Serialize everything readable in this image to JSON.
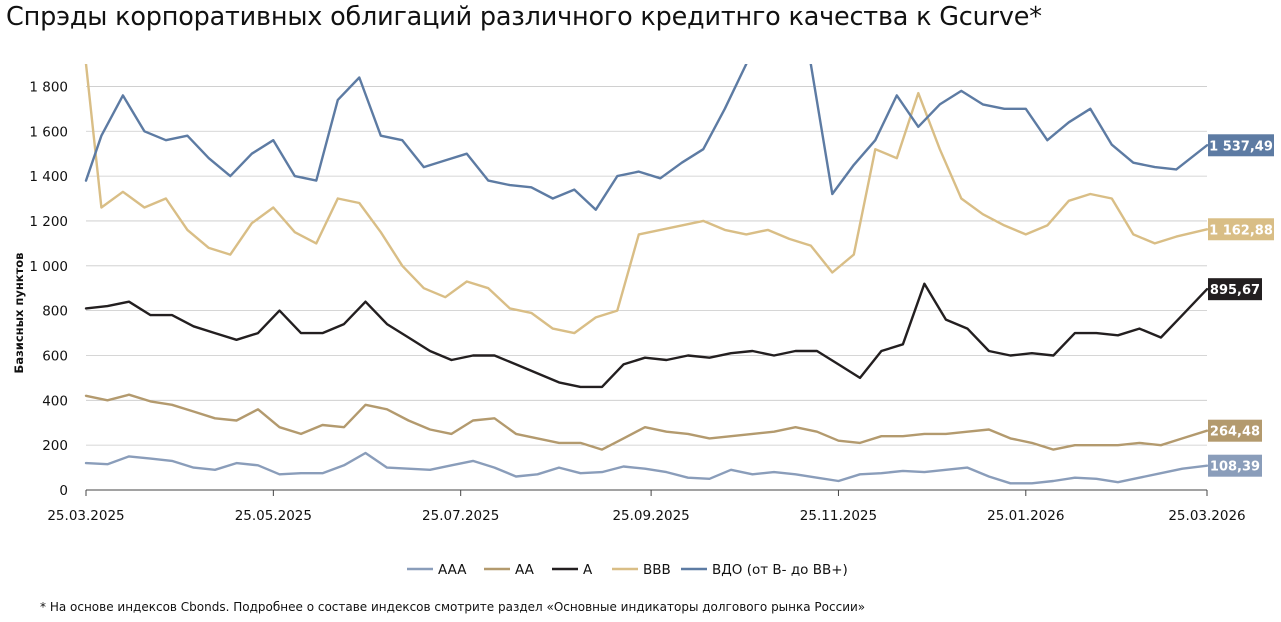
{
  "title": "Спрэды корпоративных облигаций различного кредитнго качества к Gcurve*",
  "footnote": "* На основе индексов Cbonds. Подробнее о составе индексов смотрите раздел «Основные индикаторы долгового рынка России»",
  "chart_data": {
    "type": "line",
    "ylabel": "Базисных пунктов",
    "ylim": [
      0,
      1900
    ],
    "yticks": [
      0,
      200,
      400,
      600,
      800,
      1000,
      1200,
      1400,
      1600,
      1800
    ],
    "ytick_labels": [
      "0",
      "200",
      "400",
      "600",
      "800",
      "1 000",
      "1 200",
      "1 400",
      "1 600",
      "1 800"
    ],
    "xlim": [
      "2025-03-25",
      "2026-03-25"
    ],
    "xticks": [
      "2025-03-25",
      "2025-05-25",
      "2025-07-25",
      "2025-09-25",
      "2025-11-25",
      "2026-01-25",
      "2026-03-25"
    ],
    "xtick_labels": [
      "25.03.2025",
      "25.05.2025",
      "25.07.2025",
      "25.09.2025",
      "25.11.2025",
      "25.01.2026",
      "25.03.2026"
    ],
    "grid": "horizontal",
    "legend_position": "bottom",
    "series": [
      {
        "name": "AAA",
        "color": "#8A9DBA",
        "last_label": "108,39",
        "x": [
          "2025-03-25",
          "2025-04-01",
          "2025-04-08",
          "2025-04-15",
          "2025-04-22",
          "2025-04-29",
          "2025-05-06",
          "2025-05-13",
          "2025-05-20",
          "2025-05-27",
          "2025-06-03",
          "2025-06-10",
          "2025-06-17",
          "2025-06-24",
          "2025-07-01",
          "2025-07-08",
          "2025-07-15",
          "2025-07-22",
          "2025-07-29",
          "2025-08-05",
          "2025-08-12",
          "2025-08-19",
          "2025-08-26",
          "2025-09-02",
          "2025-09-09",
          "2025-09-16",
          "2025-09-23",
          "2025-09-30",
          "2025-10-07",
          "2025-10-14",
          "2025-10-21",
          "2025-10-28",
          "2025-11-04",
          "2025-11-11",
          "2025-11-18",
          "2025-11-25",
          "2025-12-02",
          "2025-12-09",
          "2025-12-16",
          "2025-12-23",
          "2025-12-30",
          "2026-01-06",
          "2026-01-13",
          "2026-01-20",
          "2026-01-27",
          "2026-02-03",
          "2026-02-10",
          "2026-02-17",
          "2026-02-24",
          "2026-03-03",
          "2026-03-10",
          "2026-03-17",
          "2026-03-25"
        ],
        "values": [
          120,
          115,
          150,
          140,
          130,
          100,
          90,
          120,
          110,
          70,
          75,
          75,
          110,
          165,
          100,
          95,
          90,
          110,
          130,
          100,
          60,
          70,
          100,
          75,
          80,
          105,
          95,
          80,
          55,
          50,
          90,
          70,
          80,
          70,
          55,
          40,
          70,
          75,
          85,
          80,
          90,
          100,
          60,
          30,
          30,
          40,
          55,
          50,
          35,
          55,
          75,
          95,
          108.39
        ]
      },
      {
        "name": "AA",
        "color": "#B39A6E",
        "last_label": "264,48",
        "x": [
          "2025-03-25",
          "2025-04-01",
          "2025-04-08",
          "2025-04-15",
          "2025-04-22",
          "2025-04-29",
          "2025-05-06",
          "2025-05-13",
          "2025-05-20",
          "2025-05-27",
          "2025-06-03",
          "2025-06-10",
          "2025-06-17",
          "2025-06-24",
          "2025-07-01",
          "2025-07-08",
          "2025-07-15",
          "2025-07-22",
          "2025-07-29",
          "2025-08-05",
          "2025-08-12",
          "2025-08-19",
          "2025-08-26",
          "2025-09-02",
          "2025-09-09",
          "2025-09-16",
          "2025-09-23",
          "2025-09-30",
          "2025-10-07",
          "2025-10-14",
          "2025-10-21",
          "2025-10-28",
          "2025-11-04",
          "2025-11-11",
          "2025-11-18",
          "2025-11-25",
          "2025-12-02",
          "2025-12-09",
          "2025-12-16",
          "2025-12-23",
          "2025-12-30",
          "2026-01-06",
          "2026-01-13",
          "2026-01-20",
          "2026-01-27",
          "2026-02-03",
          "2026-02-10",
          "2026-02-17",
          "2026-02-24",
          "2026-03-03",
          "2026-03-10",
          "2026-03-17",
          "2026-03-25"
        ],
        "values": [
          420,
          400,
          425,
          395,
          380,
          350,
          320,
          310,
          360,
          280,
          250,
          290,
          280,
          380,
          360,
          310,
          270,
          250,
          310,
          320,
          250,
          230,
          210,
          210,
          180,
          230,
          280,
          260,
          250,
          230,
          240,
          250,
          260,
          280,
          260,
          220,
          210,
          240,
          240,
          250,
          250,
          260,
          270,
          230,
          210,
          180,
          200,
          200,
          200,
          210,
          200,
          230,
          264.48
        ]
      },
      {
        "name": "A",
        "color": "#231F20",
        "last_label": "895,67",
        "x": [
          "2025-03-25",
          "2025-04-01",
          "2025-04-08",
          "2025-04-15",
          "2025-04-22",
          "2025-04-29",
          "2025-05-06",
          "2025-05-13",
          "2025-05-20",
          "2025-05-27",
          "2025-06-03",
          "2025-06-10",
          "2025-06-17",
          "2025-06-24",
          "2025-07-01",
          "2025-07-08",
          "2025-07-15",
          "2025-07-22",
          "2025-07-29",
          "2025-08-05",
          "2025-08-12",
          "2025-08-19",
          "2025-08-26",
          "2025-09-02",
          "2025-09-09",
          "2025-09-16",
          "2025-09-23",
          "2025-09-30",
          "2025-10-07",
          "2025-10-14",
          "2025-10-21",
          "2025-10-28",
          "2025-11-04",
          "2025-11-11",
          "2025-11-18",
          "2025-11-25",
          "2025-12-02",
          "2025-12-09",
          "2025-12-16",
          "2025-12-23",
          "2025-12-30",
          "2026-01-06",
          "2026-01-13",
          "2026-01-20",
          "2026-01-27",
          "2026-02-03",
          "2026-02-10",
          "2026-02-17",
          "2026-02-24",
          "2026-03-03",
          "2026-03-10",
          "2026-03-17",
          "2026-03-25"
        ],
        "values": [
          810,
          820,
          840,
          780,
          780,
          730,
          700,
          670,
          700,
          800,
          700,
          700,
          740,
          840,
          740,
          680,
          620,
          580,
          600,
          600,
          560,
          520,
          480,
          460,
          460,
          560,
          590,
          580,
          600,
          590,
          610,
          620,
          600,
          620,
          620,
          560,
          500,
          620,
          650,
          920,
          760,
          720,
          620,
          600,
          610,
          600,
          700,
          700,
          690,
          720,
          680,
          780,
          895.67
        ]
      },
      {
        "name": "BBB",
        "color": "#D9BE86",
        "last_label": "1 162,88",
        "x": [
          "2025-03-25",
          "2025-03-30",
          "2025-04-06",
          "2025-04-13",
          "2025-04-20",
          "2025-04-27",
          "2025-05-04",
          "2025-05-11",
          "2025-05-18",
          "2025-05-25",
          "2025-06-01",
          "2025-06-08",
          "2025-06-15",
          "2025-06-22",
          "2025-06-29",
          "2025-07-06",
          "2025-07-13",
          "2025-07-20",
          "2025-07-27",
          "2025-08-03",
          "2025-08-10",
          "2025-08-17",
          "2025-08-24",
          "2025-08-31",
          "2025-09-07",
          "2025-09-14",
          "2025-09-21",
          "2025-09-28",
          "2025-10-05",
          "2025-10-12",
          "2025-10-19",
          "2025-10-26",
          "2025-11-02",
          "2025-11-09",
          "2025-11-16",
          "2025-11-23",
          "2025-11-30",
          "2025-12-07",
          "2025-12-14",
          "2025-12-21",
          "2025-12-28",
          "2026-01-04",
          "2026-01-11",
          "2026-01-18",
          "2026-01-25",
          "2026-02-01",
          "2026-02-08",
          "2026-02-15",
          "2026-02-22",
          "2026-03-01",
          "2026-03-08",
          "2026-03-15",
          "2026-03-25"
        ],
        "values": [
          1900,
          1260,
          1330,
          1260,
          1300,
          1160,
          1080,
          1050,
          1190,
          1260,
          1150,
          1100,
          1300,
          1280,
          1150,
          1000,
          900,
          860,
          930,
          900,
          810,
          790,
          720,
          700,
          770,
          800,
          1140,
          1160,
          1180,
          1200,
          1160,
          1140,
          1160,
          1120,
          1090,
          970,
          1050,
          1520,
          1480,
          1770,
          1520,
          1300,
          1230,
          1180,
          1140,
          1180,
          1290,
          1320,
          1300,
          1140,
          1100,
          1130,
          1162.88
        ]
      },
      {
        "name": "ВДО (от B- до BB+)",
        "color": "#5D7BA3",
        "last_label": "1 537,49",
        "x": [
          "2025-03-25",
          "2025-03-30",
          "2025-04-06",
          "2025-04-13",
          "2025-04-20",
          "2025-04-27",
          "2025-05-04",
          "2025-05-11",
          "2025-05-18",
          "2025-05-25",
          "2025-06-01",
          "2025-06-08",
          "2025-06-15",
          "2025-06-22",
          "2025-06-29",
          "2025-07-06",
          "2025-07-13",
          "2025-07-20",
          "2025-07-27",
          "2025-08-03",
          "2025-08-10",
          "2025-08-17",
          "2025-08-24",
          "2025-08-31",
          "2025-09-07",
          "2025-09-14",
          "2025-09-21",
          "2025-09-28",
          "2025-10-05",
          "2025-10-12",
          "2025-10-19",
          "2025-10-26",
          "2025-11-02",
          "2025-11-09",
          "2025-11-16",
          "2025-11-23",
          "2025-11-30",
          "2025-12-07",
          "2025-12-14",
          "2025-12-21",
          "2025-12-28",
          "2026-01-04",
          "2026-01-11",
          "2026-01-18",
          "2026-01-25",
          "2026-02-01",
          "2026-02-08",
          "2026-02-15",
          "2026-02-22",
          "2026-03-01",
          "2026-03-08",
          "2026-03-15",
          "2026-03-25"
        ],
        "values": [
          1380,
          1580,
          1760,
          1600,
          1560,
          1580,
          1480,
          1400,
          1500,
          1560,
          1400,
          1380,
          1740,
          1840,
          1580,
          1560,
          1440,
          1470,
          1500,
          1380,
          1360,
          1350,
          1300,
          1340,
          1250,
          1400,
          1420,
          1390,
          1460,
          1520,
          1700,
          1900,
          null,
          null,
          1900,
          1320,
          1450,
          1560,
          1760,
          1620,
          1720,
          1780,
          1720,
          1700,
          1700,
          1560,
          1640,
          1700,
          1540,
          1460,
          1440,
          1430,
          1537.49
        ]
      }
    ]
  }
}
